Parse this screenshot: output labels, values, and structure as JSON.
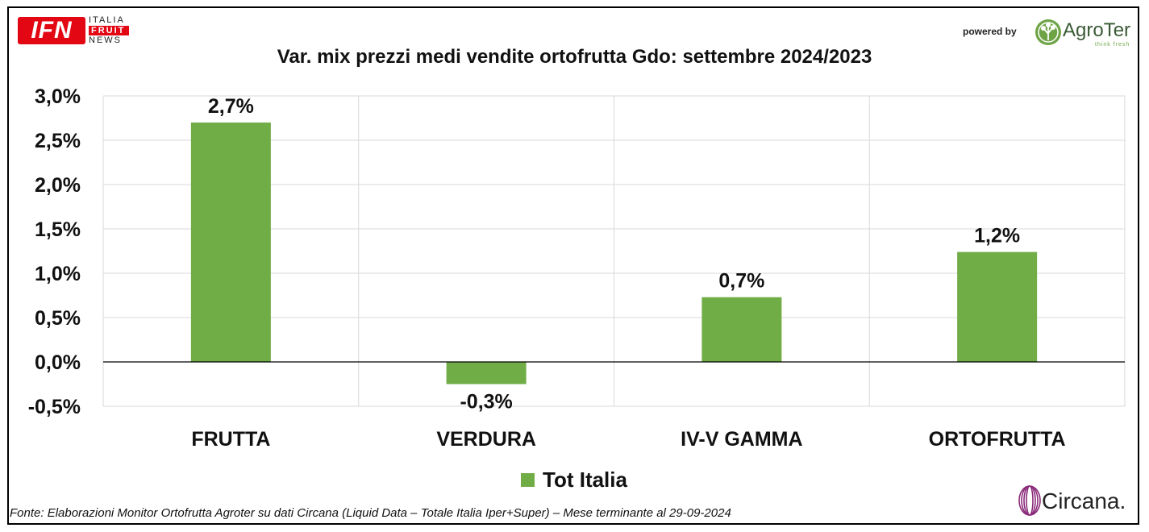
{
  "header": {
    "ifn_logo_text": "IFN",
    "ifn_words": [
      "ITALIA",
      "FRUIT",
      "NEWS"
    ],
    "powered_by": "powered by",
    "agroter_name": "AgroTer",
    "agroter_tagline": "think fresh"
  },
  "chart_data": {
    "type": "bar",
    "title": "Var. mix prezzi medi vendite ortofrutta Gdo: settembre 2024/2023",
    "categories": [
      "FRUTTA",
      "VERDURA",
      "IV-V GAMMA",
      "ORTOFRUTTA"
    ],
    "series": [
      {
        "name": "Tot Italia",
        "values": [
          2.7,
          -0.25,
          0.73,
          1.24
        ],
        "labels": [
          "2,7%",
          "-0,3%",
          "0,7%",
          "1,2%"
        ]
      }
    ],
    "ylim": [
      -0.5,
      3.0
    ],
    "yticks": [
      3.0,
      2.5,
      2.0,
      1.5,
      1.0,
      0.5,
      0.0,
      -0.5
    ],
    "ytick_labels": [
      "3,0%",
      "2,5%",
      "2,0%",
      "1,5%",
      "1,0%",
      "0,5%",
      "0,0%",
      "-0,5%"
    ],
    "grid": true,
    "legend_position": "bottom-center",
    "bar_color": "#70ad47",
    "xlabel": "",
    "ylabel": ""
  },
  "footer": {
    "source": "Fonte: Elaborazioni Monitor Ortofrutta Agroter su dati Circana (Liquid Data – Totale Italia Iper+Super) – Mese terminante al 29-09-2024",
    "circana_name": "Circana."
  },
  "colors": {
    "ifn_red": "#e30613",
    "bar_green": "#70ad47",
    "agroter_green": "#6ea446",
    "circana_purple": "#8a2b7a"
  }
}
